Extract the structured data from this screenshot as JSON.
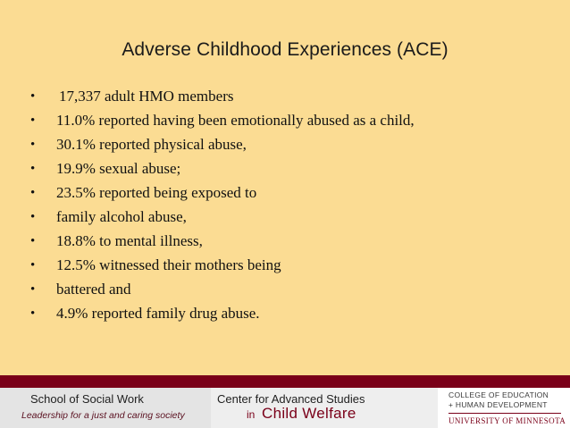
{
  "slide": {
    "title": "Adverse Childhood Experiences (ACE)",
    "bullet_symbol": "•",
    "bullets": [
      "17,337 adult HMO members",
      "11.0% reported having been emotionally abused as a child,",
      "30.1% reported physical abuse,",
      "19.9% sexual abuse;",
      "23.5% reported being exposed to",
      "family alcohol abuse,",
      "18.8% to mental illness,",
      "12.5% witnessed their mothers being",
      "battered and",
      "4.9% reported family drug abuse."
    ]
  },
  "footer": {
    "ssw_name": "School of Social Work",
    "ssw_tagline": "Leadership for a just and caring society",
    "cas_line1": "Center for Advanced Studies",
    "cas_in": "in",
    "cas_line2": "Child Welfare",
    "umn_line1": "COLLEGE OF EDUCATION",
    "umn_line2": "+ HUMAN DEVELOPMENT",
    "umn_line3": "UNIVERSITY OF MINNESOTA"
  },
  "colors": {
    "background": "#fbdc93",
    "maroon": "#7a0019"
  }
}
